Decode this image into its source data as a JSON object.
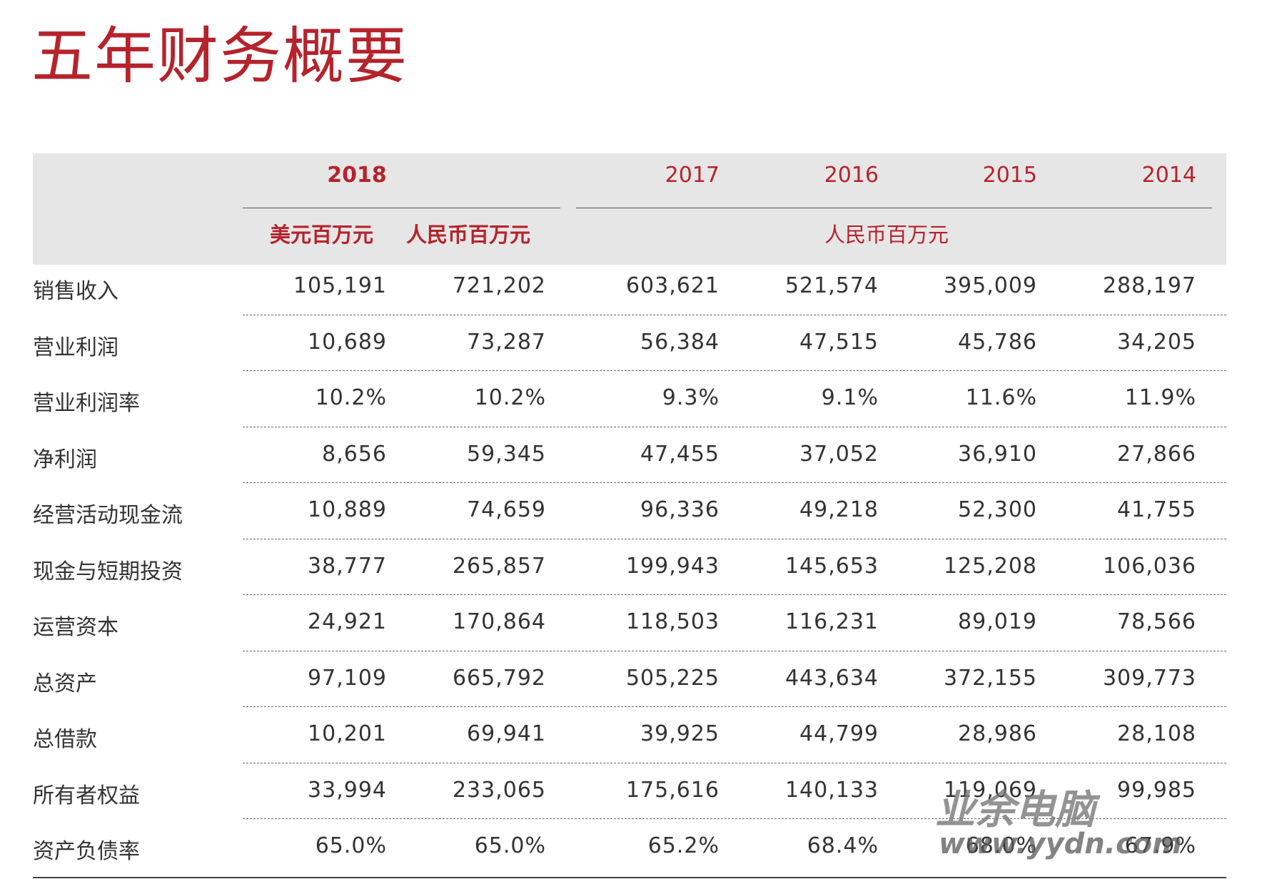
{
  "header": {
    "title": "五年财务概要",
    "years": [
      "2018",
      "2017",
      "2016",
      "2015",
      "2014"
    ],
    "units_2018": [
      "美元百万元",
      "人民币百万元"
    ],
    "units_other": "人民币百万元"
  },
  "table": {
    "rows": [
      [
        "销售收入",
        "105,191",
        "721,202",
        "603,621",
        "521,574",
        "395,009",
        "288,197"
      ],
      [
        "营业利润",
        "10,689",
        "73,287",
        "56,384",
        "47,515",
        "45,786",
        "34,205"
      ],
      [
        "营业利润率",
        "10.2%",
        "10.2%",
        "9.3%",
        "9.1%",
        "11.6%",
        "11.9%"
      ],
      [
        "净利润",
        "8,656",
        "59,345",
        "47,455",
        "37,052",
        "36,910",
        "27,866"
      ],
      [
        "经营活动现金流",
        "10,889",
        "74,659",
        "96,336",
        "49,218",
        "52,300",
        "41,755"
      ],
      [
        "现金与短期投资",
        "38,777",
        "265,857",
        "199,943",
        "145,653",
        "125,208",
        "106,036"
      ],
      [
        "运营资本",
        "24,921",
        "170,864",
        "118,503",
        "116,231",
        "89,019",
        "78,566"
      ],
      [
        "总资产",
        "97,109",
        "665,792",
        "505,225",
        "443,634",
        "372,155",
        "309,773"
      ],
      [
        "总借款",
        "10,201",
        "69,941",
        "39,925",
        "44,799",
        "28,986",
        "28,108"
      ],
      [
        "所有者权益",
        "33,994",
        "233,065",
        "175,616",
        "140,133",
        "119,069",
        "99,985"
      ],
      [
        "资产负债率",
        "65.0%",
        "65.0%",
        "65.2%",
        "68.4%",
        "68.0%",
        "67.9%"
      ]
    ]
  },
  "watermark": {
    "name": "业余电脑",
    "url": "www.yydn.com"
  }
}
